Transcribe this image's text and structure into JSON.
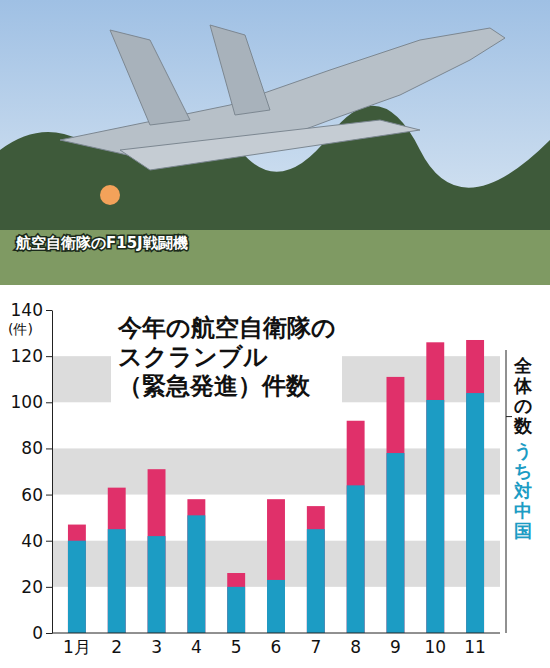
{
  "chart_data": {
    "type": "bar",
    "title": [
      "今年の航空自衛隊の",
      "スクランブル",
      "（緊急発進）件数"
    ],
    "annotations": [
      "航空自衛隊のF15J戦闘機"
    ],
    "y_label": "(件)",
    "categories": [
      "1月",
      "2",
      "3",
      "4",
      "5",
      "6",
      "7",
      "8",
      "9",
      "10",
      "11"
    ],
    "series": [
      {
        "name": "全体の数",
        "color": "#e0306a",
        "values": [
          47,
          63,
          71,
          58,
          26,
          58,
          55,
          92,
          111,
          126,
          127
        ]
      },
      {
        "name": "うち対中国",
        "color": "#1c9cc4",
        "values": [
          40,
          45,
          42,
          51,
          20,
          23,
          45,
          64,
          78,
          101,
          104
        ]
      }
    ],
    "ylim": [
      0,
      140
    ],
    "yticks": [
      0,
      20,
      40,
      60,
      80,
      100,
      120,
      140
    ],
    "grid": true,
    "stacked": false,
    "legend": "right"
  }
}
